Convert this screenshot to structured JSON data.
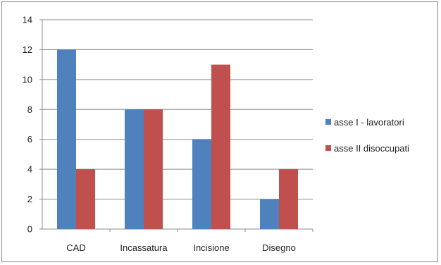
{
  "chart_data": {
    "type": "bar",
    "categories": [
      "CAD",
      "Incassatura",
      "Incisione",
      "Disegno"
    ],
    "series": [
      {
        "name": "asse I - lavoratori",
        "values": [
          12,
          8,
          6,
          2
        ],
        "color": "#4F81BD"
      },
      {
        "name": "asse II disoccupati",
        "values": [
          4,
          8,
          11,
          4
        ],
        "color": "#C0504D"
      }
    ],
    "ylim": [
      0,
      14
    ],
    "yticks": [
      0,
      2,
      4,
      6,
      8,
      10,
      12,
      14
    ],
    "grid": true,
    "legend_position": "right",
    "gridline_color": "#8C8C8C",
    "axis_color": "#8C8C8C"
  }
}
